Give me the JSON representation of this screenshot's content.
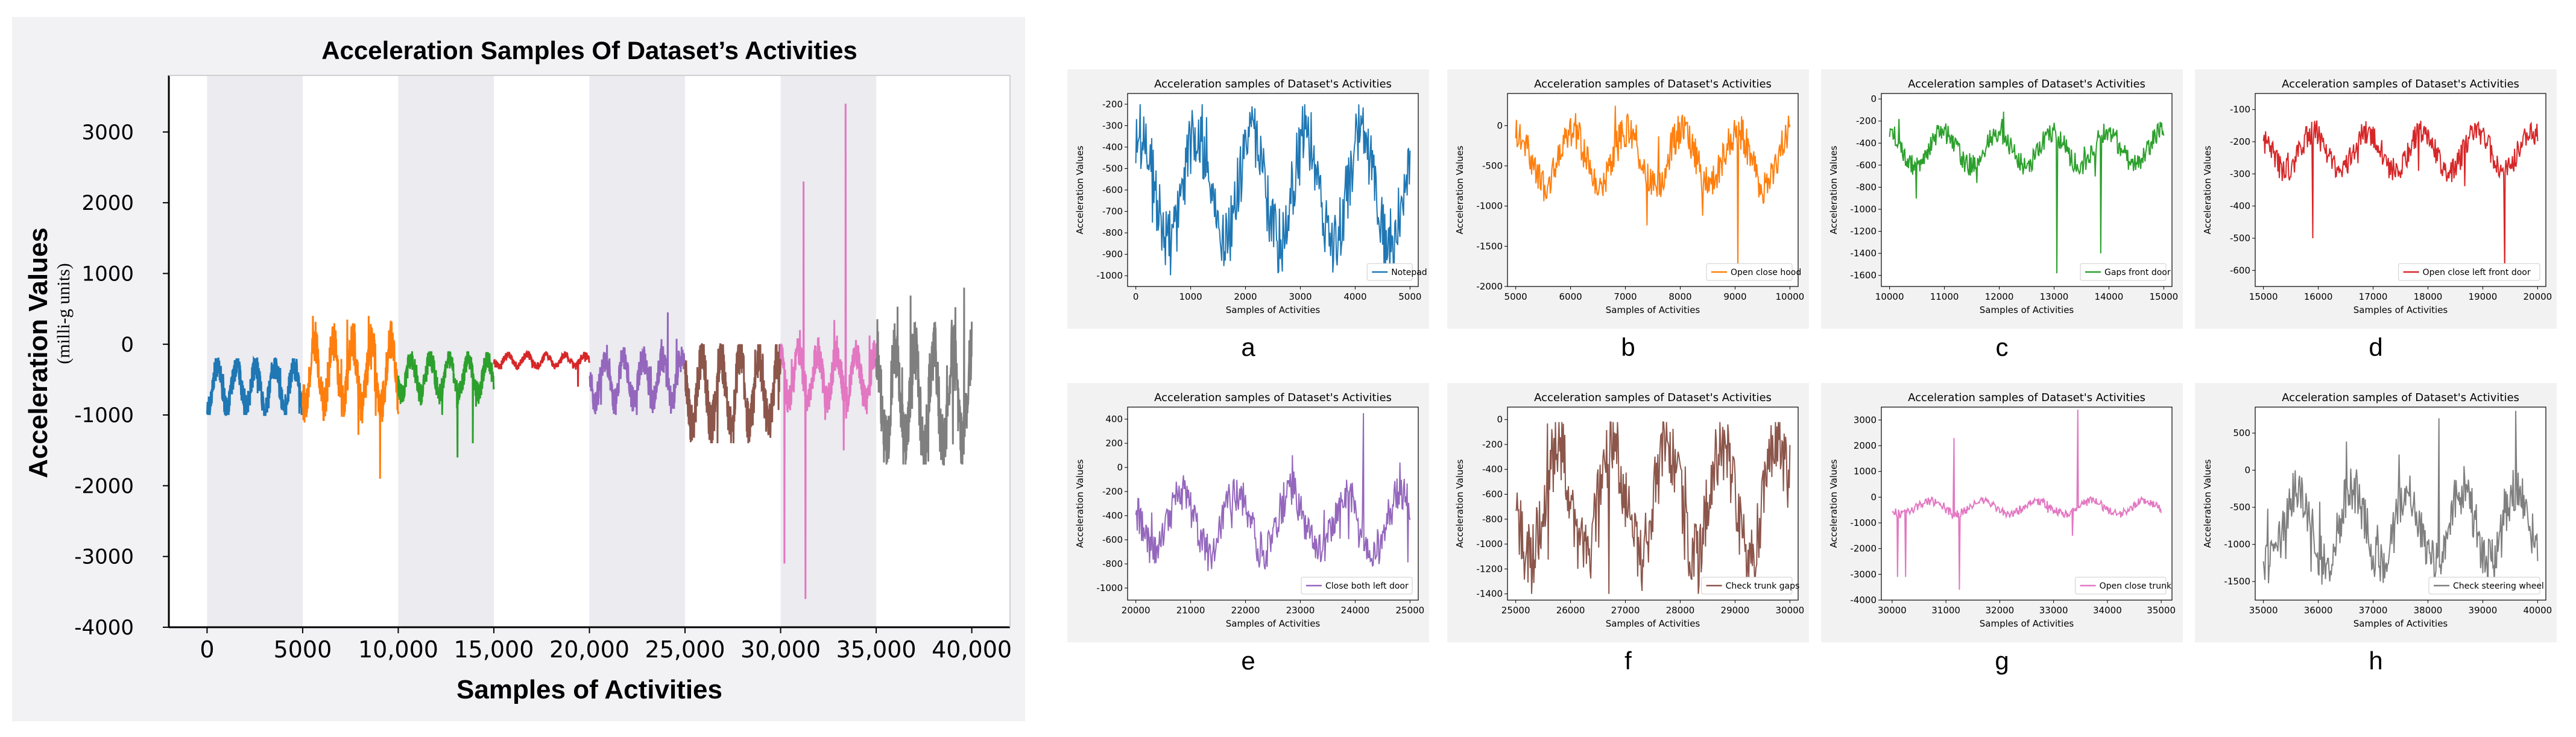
{
  "chart_data": [
    {
      "type": "line",
      "title": "Acceleration Samples Of Dataset’s Activities",
      "xlabel": "Samples of Activities",
      "ylabel": "Acceleration Values",
      "ylabel_sub": "(milli-g units)",
      "xlim": [
        -2000,
        42000
      ],
      "ylim": [
        -4000,
        3800
      ],
      "xticks": [
        0,
        5000,
        10000,
        15000,
        20000,
        25000,
        30000,
        35000,
        40000
      ],
      "xtick_labels": [
        "0",
        "5000",
        "10,000",
        "15,000",
        "20,000",
        "25,000",
        "30,000",
        "35,000",
        "40,000"
      ],
      "yticks": [
        3000,
        2000,
        1000,
        0,
        -1000,
        -2000,
        -3000,
        -4000
      ],
      "ytick_labels": [
        "3000",
        "2000",
        "1000",
        "0",
        "-1000",
        "-2000",
        "-3000",
        "-4000"
      ],
      "shaded_bands": [
        [
          0,
          5000
        ],
        [
          10000,
          15000
        ],
        [
          20000,
          25000
        ],
        [
          30000,
          35000
        ]
      ],
      "series": [
        {
          "name": "Notepad",
          "color": "#1f77b4",
          "x_range": [
            0,
            5000
          ],
          "base": -600,
          "amp": 300,
          "lo": -1000,
          "hi": -200,
          "spikes": []
        },
        {
          "name": "Open close hood",
          "color": "#ff7f0e",
          "x_range": [
            5000,
            10000
          ],
          "base": -400,
          "amp": 450,
          "lo": -1900,
          "hi": 400,
          "spikes": [
            [
              9050,
              -1900
            ]
          ]
        },
        {
          "name": "Gaps front door",
          "color": "#2ca02c",
          "x_range": [
            10000,
            15000
          ],
          "base": -450,
          "amp": 250,
          "lo": -1600,
          "hi": -100,
          "spikes": [
            [
              13100,
              -1600
            ],
            [
              13900,
              -1400
            ]
          ]
        },
        {
          "name": "Open close left front door",
          "color": "#d62728",
          "x_range": [
            15000,
            20000
          ],
          "base": -230,
          "amp": 80,
          "lo": -650,
          "hi": -100,
          "spikes": [
            [
              19400,
              -600
            ]
          ]
        },
        {
          "name": "Close both left door",
          "color": "#9467bd",
          "x_range": [
            20000,
            25000
          ],
          "base": -500,
          "amp": 300,
          "lo": -1000,
          "hi": 450,
          "spikes": [
            [
              24100,
              450
            ]
          ]
        },
        {
          "name": "Check trunk gaps",
          "color": "#8c564b",
          "x_range": [
            25000,
            30000
          ],
          "base": -650,
          "amp": 500,
          "lo": -1400,
          "hi": 0,
          "spikes": [
            [
              26700,
              -1400
            ]
          ]
        },
        {
          "name": "Open close trunk",
          "color": "#e377c2",
          "x_range": [
            30000,
            35000
          ],
          "base": -450,
          "amp": 350,
          "lo": -3600,
          "hi": 3400,
          "spikes": [
            [
              30200,
              -3100
            ],
            [
              31200,
              2300
            ],
            [
              31300,
              -3600
            ],
            [
              33400,
              3400
            ],
            [
              33300,
              -1500
            ]
          ]
        },
        {
          "name": "Check steering wheel",
          "color": "#7f7f7f",
          "x_range": [
            35000,
            40000
          ],
          "base": -750,
          "amp": 700,
          "lo": -1700,
          "hi": 800,
          "spikes": [
            [
              39600,
              800
            ]
          ]
        }
      ]
    },
    {
      "panel": "a",
      "type": "line",
      "title": "Acceleration samples of Dataset's Activities",
      "xlabel": "Samples of Activities",
      "ylabel": "Acceleration Values",
      "legend": "Notepad",
      "color": "#1f77b4",
      "xlim": [
        -150,
        5150
      ],
      "ylim": [
        -1050,
        -150
      ],
      "xticks": [
        0,
        1000,
        2000,
        3000,
        4000,
        5000
      ],
      "xtick_labels": [
        "0",
        "1000",
        "2000",
        "3000",
        "4000",
        "5000"
      ],
      "yticks": [
        -200,
        -300,
        -400,
        -500,
        -600,
        -700,
        -800,
        -900,
        -1000
      ],
      "ytick_labels": [
        "-200",
        "-300",
        "-400",
        "-500",
        "-600",
        "-700",
        "-800",
        "-900",
        "-1000"
      ],
      "x_range": [
        0,
        5000
      ],
      "base": -600,
      "amp": 250,
      "lo": -1000,
      "hi": -200,
      "spikes": []
    },
    {
      "panel": "b",
      "type": "line",
      "title": "Acceleration samples of Dataset's Activities",
      "xlabel": "Samples of Activities",
      "ylabel": "Acceleration Values",
      "legend": "Open close hood",
      "color": "#ff7f0e",
      "xlim": [
        4850,
        10150
      ],
      "ylim": [
        -2000,
        400
      ],
      "xticks": [
        5000,
        6000,
        7000,
        8000,
        9000,
        10000
      ],
      "xtick_labels": [
        "5000",
        "6000",
        "7000",
        "8000",
        "9000",
        "10000"
      ],
      "yticks": [
        0,
        -500,
        -1000,
        -1500,
        -2000
      ],
      "ytick_labels": [
        "0",
        "-500",
        "-1000",
        "-1500",
        "-2000"
      ],
      "x_range": [
        5000,
        10000
      ],
      "base": -400,
      "amp": 350,
      "lo": -1900,
      "hi": 300,
      "spikes": [
        [
          9050,
          -1850
        ]
      ]
    },
    {
      "panel": "c",
      "type": "line",
      "title": "Acceleration samples of Dataset's Activities",
      "xlabel": "Samples of Activities",
      "ylabel": "Acceleration Values",
      "legend": "Gaps front door",
      "color": "#2ca02c",
      "xlim": [
        9850,
        15150
      ],
      "ylim": [
        -1700,
        50
      ],
      "xticks": [
        10000,
        11000,
        12000,
        13000,
        14000,
        15000
      ],
      "xtick_labels": [
        "10000",
        "11000",
        "12000",
        "13000",
        "14000",
        "15000"
      ],
      "yticks": [
        0,
        -200,
        -400,
        -600,
        -800,
        -1000,
        -1200,
        -1400,
        -1600
      ],
      "ytick_labels": [
        "0",
        "-200",
        "-400",
        "-600",
        "-800",
        "-1000",
        "-1200",
        "-1400",
        "-1600"
      ],
      "x_range": [
        10000,
        15000
      ],
      "base": -450,
      "amp": 150,
      "lo": -1600,
      "hi": -50,
      "spikes": [
        [
          13050,
          -1580
        ],
        [
          13850,
          -1400
        ]
      ]
    },
    {
      "panel": "d",
      "type": "line",
      "title": "Acceleration samples of Dataset's Activities",
      "xlabel": "Samples of Activities",
      "ylabel": "Acceleration Values",
      "legend": "Open close left front door",
      "color": "#d62728",
      "xlim": [
        14850,
        20150
      ],
      "ylim": [
        -650,
        -50
      ],
      "xticks": [
        15000,
        16000,
        17000,
        18000,
        19000,
        20000
      ],
      "xtick_labels": [
        "15000",
        "16000",
        "17000",
        "18000",
        "19000",
        "20000"
      ],
      "yticks": [
        -100,
        -200,
        -300,
        -400,
        -500,
        -600
      ],
      "ytick_labels": [
        "-100",
        "-200",
        "-300",
        "-400",
        "-500",
        "-600"
      ],
      "x_range": [
        15000,
        20000
      ],
      "base": -230,
      "amp": 60,
      "lo": -620,
      "hi": -70,
      "spikes": [
        [
          19400,
          -610
        ],
        [
          15900,
          -500
        ]
      ]
    },
    {
      "panel": "e",
      "type": "line",
      "title": "Acceleration samples of Dataset's Activities",
      "xlabel": "Samples of Activities",
      "ylabel": "Acceleration Values",
      "legend": "Close both left door",
      "color": "#9467bd",
      "xlim": [
        19850,
        25150
      ],
      "ylim": [
        -1100,
        500
      ],
      "xticks": [
        20000,
        21000,
        22000,
        23000,
        24000,
        25000
      ],
      "xtick_labels": [
        "20000",
        "21000",
        "22000",
        "23000",
        "24000",
        "25000"
      ],
      "yticks": [
        400,
        200,
        0,
        -200,
        -400,
        -600,
        -800,
        -1000
      ],
      "ytick_labels": [
        "400",
        "200",
        "0",
        "-200",
        "-400",
        "-600",
        "-800",
        "-1000"
      ],
      "x_range": [
        20000,
        25000
      ],
      "base": -450,
      "amp": 250,
      "lo": -1050,
      "hi": 450,
      "spikes": [
        [
          24150,
          450
        ]
      ]
    },
    {
      "panel": "f",
      "type": "line",
      "title": "Acceleration samples of Dataset's Activities",
      "xlabel": "Samples of Activities",
      "ylabel": "Acceleration Values",
      "legend": "Check trunk gaps",
      "color": "#8c564b",
      "xlim": [
        24850,
        30150
      ],
      "ylim": [
        -1450,
        100
      ],
      "xticks": [
        25000,
        26000,
        27000,
        28000,
        29000,
        30000
      ],
      "xtick_labels": [
        "25000",
        "26000",
        "27000",
        "28000",
        "29000",
        "30000"
      ],
      "yticks": [
        0,
        -200,
        -400,
        -600,
        -800,
        -1000,
        -1200,
        -1400
      ],
      "ytick_labels": [
        "0",
        "-200",
        "-400",
        "-600",
        "-800",
        "-1000",
        "-1200",
        "-1400"
      ],
      "x_range": [
        25000,
        30000
      ],
      "base": -650,
      "amp": 450,
      "lo": -1400,
      "hi": -20,
      "spikes": [
        [
          26700,
          -1400
        ]
      ]
    },
    {
      "panel": "g",
      "type": "line",
      "title": "Acceleration samples of Dataset's Activities",
      "xlabel": "Samples of Activities",
      "ylabel": "Acceleration Values",
      "legend": "Open close trunk",
      "color": "#e377c2",
      "xlim": [
        29800,
        35200
      ],
      "ylim": [
        -4000,
        3500
      ],
      "xticks": [
        30000,
        31000,
        32000,
        33000,
        34000,
        35000
      ],
      "xtick_labels": [
        "30000",
        "31000",
        "32000",
        "33000",
        "34000",
        "35000"
      ],
      "yticks": [
        3000,
        2000,
        1000,
        0,
        -1000,
        -2000,
        -3000,
        -4000
      ],
      "ytick_labels": [
        "3000",
        "2000",
        "1000",
        "0",
        "-1000",
        "-2000",
        "-3000",
        "-4000"
      ],
      "x_range": [
        30000,
        35000
      ],
      "base": -400,
      "amp": 250,
      "lo": -3600,
      "hi": 3400,
      "spikes": [
        [
          30250,
          -3100
        ],
        [
          31150,
          2300
        ],
        [
          31250,
          -3600
        ],
        [
          33450,
          3400
        ],
        [
          33350,
          -1500
        ],
        [
          30100,
          -3100
        ]
      ]
    },
    {
      "panel": "h",
      "type": "line",
      "title": "Acceleration samples of Dataset's Activities",
      "xlabel": "Samples of Activities",
      "ylabel": "Acceleration Values",
      "legend": "Check steering wheel",
      "color": "#7f7f7f",
      "xlim": [
        34850,
        40150
      ],
      "ylim": [
        -1750,
        850
      ],
      "xticks": [
        35000,
        36000,
        37000,
        38000,
        39000,
        40000
      ],
      "xtick_labels": [
        "35000",
        "36000",
        "37000",
        "38000",
        "39000",
        "40000"
      ],
      "yticks": [
        500,
        0,
        -500,
        -1000,
        -1500
      ],
      "ytick_labels": [
        "500",
        "0",
        "-500",
        "-1000",
        "-1500"
      ],
      "x_range": [
        35000,
        40000
      ],
      "base": -750,
      "amp": 500,
      "lo": -1650,
      "hi": 800,
      "spikes": [
        [
          39600,
          800
        ],
        [
          38200,
          700
        ]
      ]
    }
  ]
}
